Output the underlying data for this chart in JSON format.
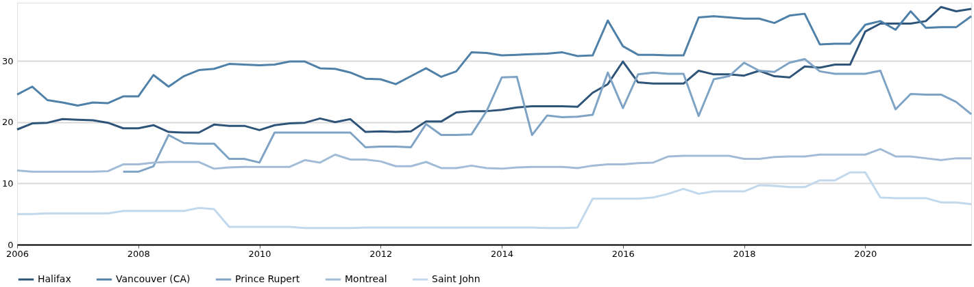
{
  "chart_data": {
    "type": "line",
    "x": [
      2006,
      2006.25,
      2006.5,
      2006.75,
      2007,
      2007.25,
      2007.5,
      2007.75,
      2008,
      2008.25,
      2008.5,
      2008.75,
      2009,
      2009.25,
      2009.5,
      2009.75,
      2010,
      2010.25,
      2010.5,
      2010.75,
      2011,
      2011.25,
      2011.5,
      2011.75,
      2012,
      2012.25,
      2012.5,
      2012.75,
      2013,
      2013.25,
      2013.5,
      2013.75,
      2014,
      2014.25,
      2014.5,
      2014.75,
      2015,
      2015.25,
      2015.5,
      2015.75,
      2016,
      2016.25,
      2016.5,
      2016.75,
      2017,
      2017.25,
      2017.5,
      2017.75,
      2018,
      2018.25,
      2018.5,
      2018.75,
      2019,
      2019.25,
      2019.5,
      2019.75,
      2020,
      2020.25,
      2020.5,
      2020.75,
      2021,
      2021.25,
      2021.5,
      2021.75
    ],
    "series": [
      {
        "name": "Halifax",
        "color": "#2f5479",
        "values": [
          18.8,
          19.8,
          19.9,
          20.5,
          20.4,
          20.3,
          19.9,
          19.0,
          19.0,
          19.5,
          18.4,
          18.3,
          18.3,
          19.6,
          19.4,
          19.4,
          18.7,
          19.5,
          19.8,
          19.9,
          20.6,
          20.0,
          20.5,
          18.4,
          18.5,
          18.4,
          18.5,
          20.1,
          20.1,
          21.6,
          21.8,
          21.8,
          22.0,
          22.4,
          22.6,
          22.6,
          22.6,
          22.5,
          24.8,
          26.2,
          29.9,
          26.5,
          26.3,
          26.3,
          26.3,
          28.4,
          27.8,
          27.8,
          27.6,
          28.4,
          27.5,
          27.3,
          29.1,
          28.9,
          29.4,
          29.4,
          34.8,
          36.1,
          36.1,
          36.1,
          36.5,
          38.8,
          38.1,
          38.5
        ]
      },
      {
        "name": "Vancouver (CA)",
        "color": "#4f80a8",
        "values": [
          24.5,
          25.8,
          23.6,
          23.2,
          22.7,
          23.2,
          23.1,
          24.2,
          24.2,
          27.7,
          25.8,
          27.5,
          28.5,
          28.7,
          29.5,
          29.4,
          29.3,
          29.4,
          29.9,
          29.9,
          28.8,
          28.7,
          28.1,
          27.1,
          27.0,
          26.2,
          27.5,
          28.8,
          27.4,
          28.3,
          31.4,
          31.3,
          30.9,
          31.0,
          31.1,
          31.2,
          31.4,
          30.8,
          30.9,
          36.6,
          32.4,
          31.0,
          31.0,
          30.9,
          30.9,
          37.1,
          37.3,
          37.1,
          36.9,
          36.9,
          36.2,
          37.4,
          37.7,
          32.7,
          32.8,
          32.8,
          35.9,
          36.5,
          35.1,
          38.1,
          35.4,
          35.5,
          35.5,
          37.3
        ]
      },
      {
        "name": "Prince Rupert",
        "color": "#7ea3c5",
        "values": [
          null,
          null,
          null,
          null,
          null,
          null,
          null,
          11.9,
          11.9,
          12.8,
          17.9,
          16.6,
          16.5,
          16.5,
          14.0,
          14.0,
          13.4,
          18.3,
          18.3,
          18.3,
          18.3,
          18.3,
          18.3,
          15.9,
          16.0,
          16.0,
          15.9,
          19.7,
          17.9,
          17.9,
          18.0,
          21.8,
          27.3,
          27.4,
          17.9,
          21.1,
          20.8,
          20.9,
          21.2,
          28.1,
          22.3,
          27.8,
          28.1,
          27.9,
          27.9,
          21.0,
          27.0,
          27.5,
          29.7,
          28.4,
          28.2,
          29.7,
          30.3,
          28.3,
          27.9,
          27.9,
          27.9,
          28.4,
          22.1,
          24.6,
          24.5,
          24.5,
          23.3,
          21.3
        ]
      },
      {
        "name": "Montreal",
        "color": "#a2bcd7",
        "values": [
          12.1,
          11.9,
          11.9,
          11.9,
          11.9,
          11.9,
          12.0,
          13.1,
          13.1,
          13.4,
          13.5,
          13.5,
          13.5,
          12.4,
          12.6,
          12.7,
          12.7,
          12.7,
          12.7,
          13.8,
          13.4,
          14.7,
          13.9,
          13.9,
          13.6,
          12.8,
          12.8,
          13.5,
          12.5,
          12.5,
          12.9,
          12.5,
          12.4,
          12.6,
          12.7,
          12.7,
          12.7,
          12.5,
          12.9,
          13.1,
          13.1,
          13.3,
          13.4,
          14.4,
          14.5,
          14.5,
          14.5,
          14.5,
          14.0,
          14.0,
          14.3,
          14.4,
          14.4,
          14.7,
          14.7,
          14.7,
          14.7,
          15.6,
          14.4,
          14.4,
          14.1,
          13.8,
          14.1,
          14.1
        ]
      },
      {
        "name": "Saint John",
        "color": "#c2d8ec",
        "values": [
          5.0,
          5.0,
          5.1,
          5.1,
          5.1,
          5.1,
          5.1,
          5.5,
          5.5,
          5.5,
          5.5,
          5.5,
          6.0,
          5.8,
          2.9,
          2.9,
          2.9,
          2.9,
          2.9,
          2.7,
          2.7,
          2.7,
          2.7,
          2.8,
          2.8,
          2.8,
          2.8,
          2.8,
          2.8,
          2.8,
          2.8,
          2.8,
          2.8,
          2.8,
          2.8,
          2.7,
          2.7,
          2.8,
          7.5,
          7.5,
          7.5,
          7.5,
          7.7,
          8.3,
          9.1,
          8.3,
          8.7,
          8.7,
          8.7,
          9.7,
          9.6,
          9.4,
          9.4,
          10.5,
          10.5,
          11.8,
          11.8,
          7.7,
          7.6,
          7.6,
          7.6,
          6.9,
          6.9,
          6.6
        ]
      }
    ],
    "xlim": [
      2006,
      2021.75
    ],
    "xticks": [
      2006,
      2008,
      2010,
      2012,
      2014,
      2016,
      2018,
      2020
    ],
    "ylim": [
      0,
      39.5
    ],
    "yticks": [
      0,
      10,
      20,
      30
    ],
    "grid": "y",
    "legend": "bottom",
    "marker": "none",
    "line_style": "solid"
  }
}
